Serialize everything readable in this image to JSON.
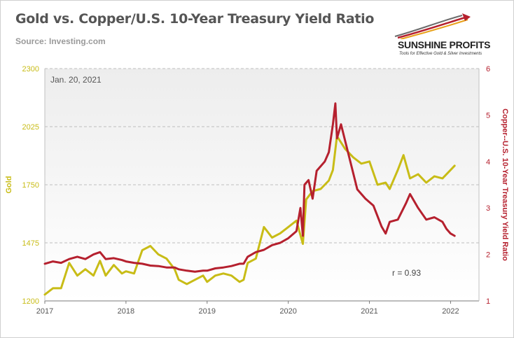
{
  "title": "Gold vs. Copper/U.S. 10-Year Treasury Yield Ratio",
  "source": "Source: Investing.com",
  "logo": {
    "name": "SUNSHINE PROFITS",
    "tagline": "Tools for Effective Gold & Silver Investments"
  },
  "colors": {
    "gold": "#c8bc16",
    "ratio": "#b5202e",
    "axis_gold": "#c8bc16",
    "axis_ratio": "#b5202e",
    "grid": "#bdbdbd"
  },
  "chart_data": {
    "type": "line",
    "date_label": "Jan. 20, 2021",
    "annotation": "r = 0.93",
    "x_ticks": [
      "2017",
      "2018",
      "2019",
      "2020",
      "2021",
      "2022"
    ],
    "x_range": [
      2017.0,
      2022.35
    ],
    "y_left": {
      "label": "Gold",
      "ticks": [
        "1200",
        "1475",
        "1750",
        "2025",
        "2300"
      ],
      "range": [
        1200,
        2300
      ]
    },
    "y_right": {
      "label": "Copper--U.S. 10-Year Treasury Yield Ratio",
      "ticks": [
        "1",
        "2",
        "3",
        "4",
        "5",
        "6"
      ],
      "range": [
        1,
        6
      ]
    },
    "grid": "dashed horizontal",
    "series": [
      {
        "axis": "left",
        "x": [
          2017.0,
          2017.1,
          2017.2,
          2017.3,
          2017.4,
          2017.5,
          2017.6,
          2017.68,
          2017.75,
          2017.85,
          2017.95,
          2018.0,
          2018.1,
          2018.2,
          2018.3,
          2018.4,
          2018.5,
          2018.6,
          2018.65,
          2018.75,
          2018.85,
          2018.95,
          2019.0,
          2019.1,
          2019.2,
          2019.3,
          2019.4,
          2019.45,
          2019.5,
          2019.6,
          2019.7,
          2019.8,
          2019.9,
          2020.0,
          2020.1,
          2020.18,
          2020.22,
          2020.3,
          2020.4,
          2020.5,
          2020.55,
          2020.6,
          2020.7,
          2020.8,
          2020.9,
          2021.0,
          2021.1,
          2021.2,
          2021.25,
          2021.35,
          2021.42,
          2021.5,
          2021.6,
          2021.7,
          2021.8,
          2021.9,
          2022.0,
          2022.05
        ],
        "y": [
          1230,
          1260,
          1260,
          1380,
          1320,
          1350,
          1320,
          1390,
          1320,
          1370,
          1330,
          1340,
          1330,
          1440,
          1460,
          1420,
          1400,
          1350,
          1300,
          1280,
          1300,
          1320,
          1290,
          1320,
          1330,
          1320,
          1290,
          1300,
          1380,
          1400,
          1550,
          1500,
          1520,
          1550,
          1580,
          1470,
          1680,
          1720,
          1730,
          1770,
          1820,
          1980,
          1920,
          1880,
          1850,
          1860,
          1750,
          1760,
          1730,
          1820,
          1890,
          1780,
          1800,
          1760,
          1790,
          1780,
          1820,
          1840
        ]
      },
      {
        "axis": "right",
        "x": [
          2017.0,
          2017.1,
          2017.2,
          2017.3,
          2017.4,
          2017.5,
          2017.6,
          2017.68,
          2017.75,
          2017.85,
          2017.95,
          2018.0,
          2018.1,
          2018.2,
          2018.3,
          2018.4,
          2018.5,
          2018.6,
          2018.65,
          2018.75,
          2018.85,
          2018.95,
          2019.0,
          2019.1,
          2019.2,
          2019.3,
          2019.4,
          2019.45,
          2019.5,
          2019.6,
          2019.7,
          2019.8,
          2019.9,
          2020.0,
          2020.1,
          2020.15,
          2020.18,
          2020.2,
          2020.25,
          2020.3,
          2020.35,
          2020.45,
          2020.5,
          2020.55,
          2020.58,
          2020.6,
          2020.65,
          2020.75,
          2020.85,
          2020.95,
          2021.05,
          2021.15,
          2021.2,
          2021.25,
          2021.35,
          2021.45,
          2021.5,
          2021.6,
          2021.7,
          2021.8,
          2021.9,
          2021.95,
          2022.0,
          2022.05
        ],
        "y": [
          1.8,
          1.85,
          1.82,
          1.9,
          1.95,
          1.9,
          2.0,
          2.05,
          1.9,
          1.92,
          1.88,
          1.85,
          1.82,
          1.8,
          1.76,
          1.75,
          1.72,
          1.72,
          1.68,
          1.65,
          1.63,
          1.65,
          1.65,
          1.7,
          1.72,
          1.75,
          1.8,
          1.8,
          1.95,
          2.05,
          2.1,
          2.2,
          2.25,
          2.35,
          2.5,
          3.0,
          2.4,
          3.5,
          3.6,
          3.2,
          3.8,
          4.0,
          4.2,
          4.8,
          5.25,
          4.5,
          4.8,
          4.1,
          3.4,
          3.2,
          3.05,
          2.6,
          2.45,
          2.7,
          2.75,
          3.1,
          3.3,
          3.0,
          2.75,
          2.8,
          2.7,
          2.55,
          2.45,
          2.4
        ]
      }
    ]
  }
}
